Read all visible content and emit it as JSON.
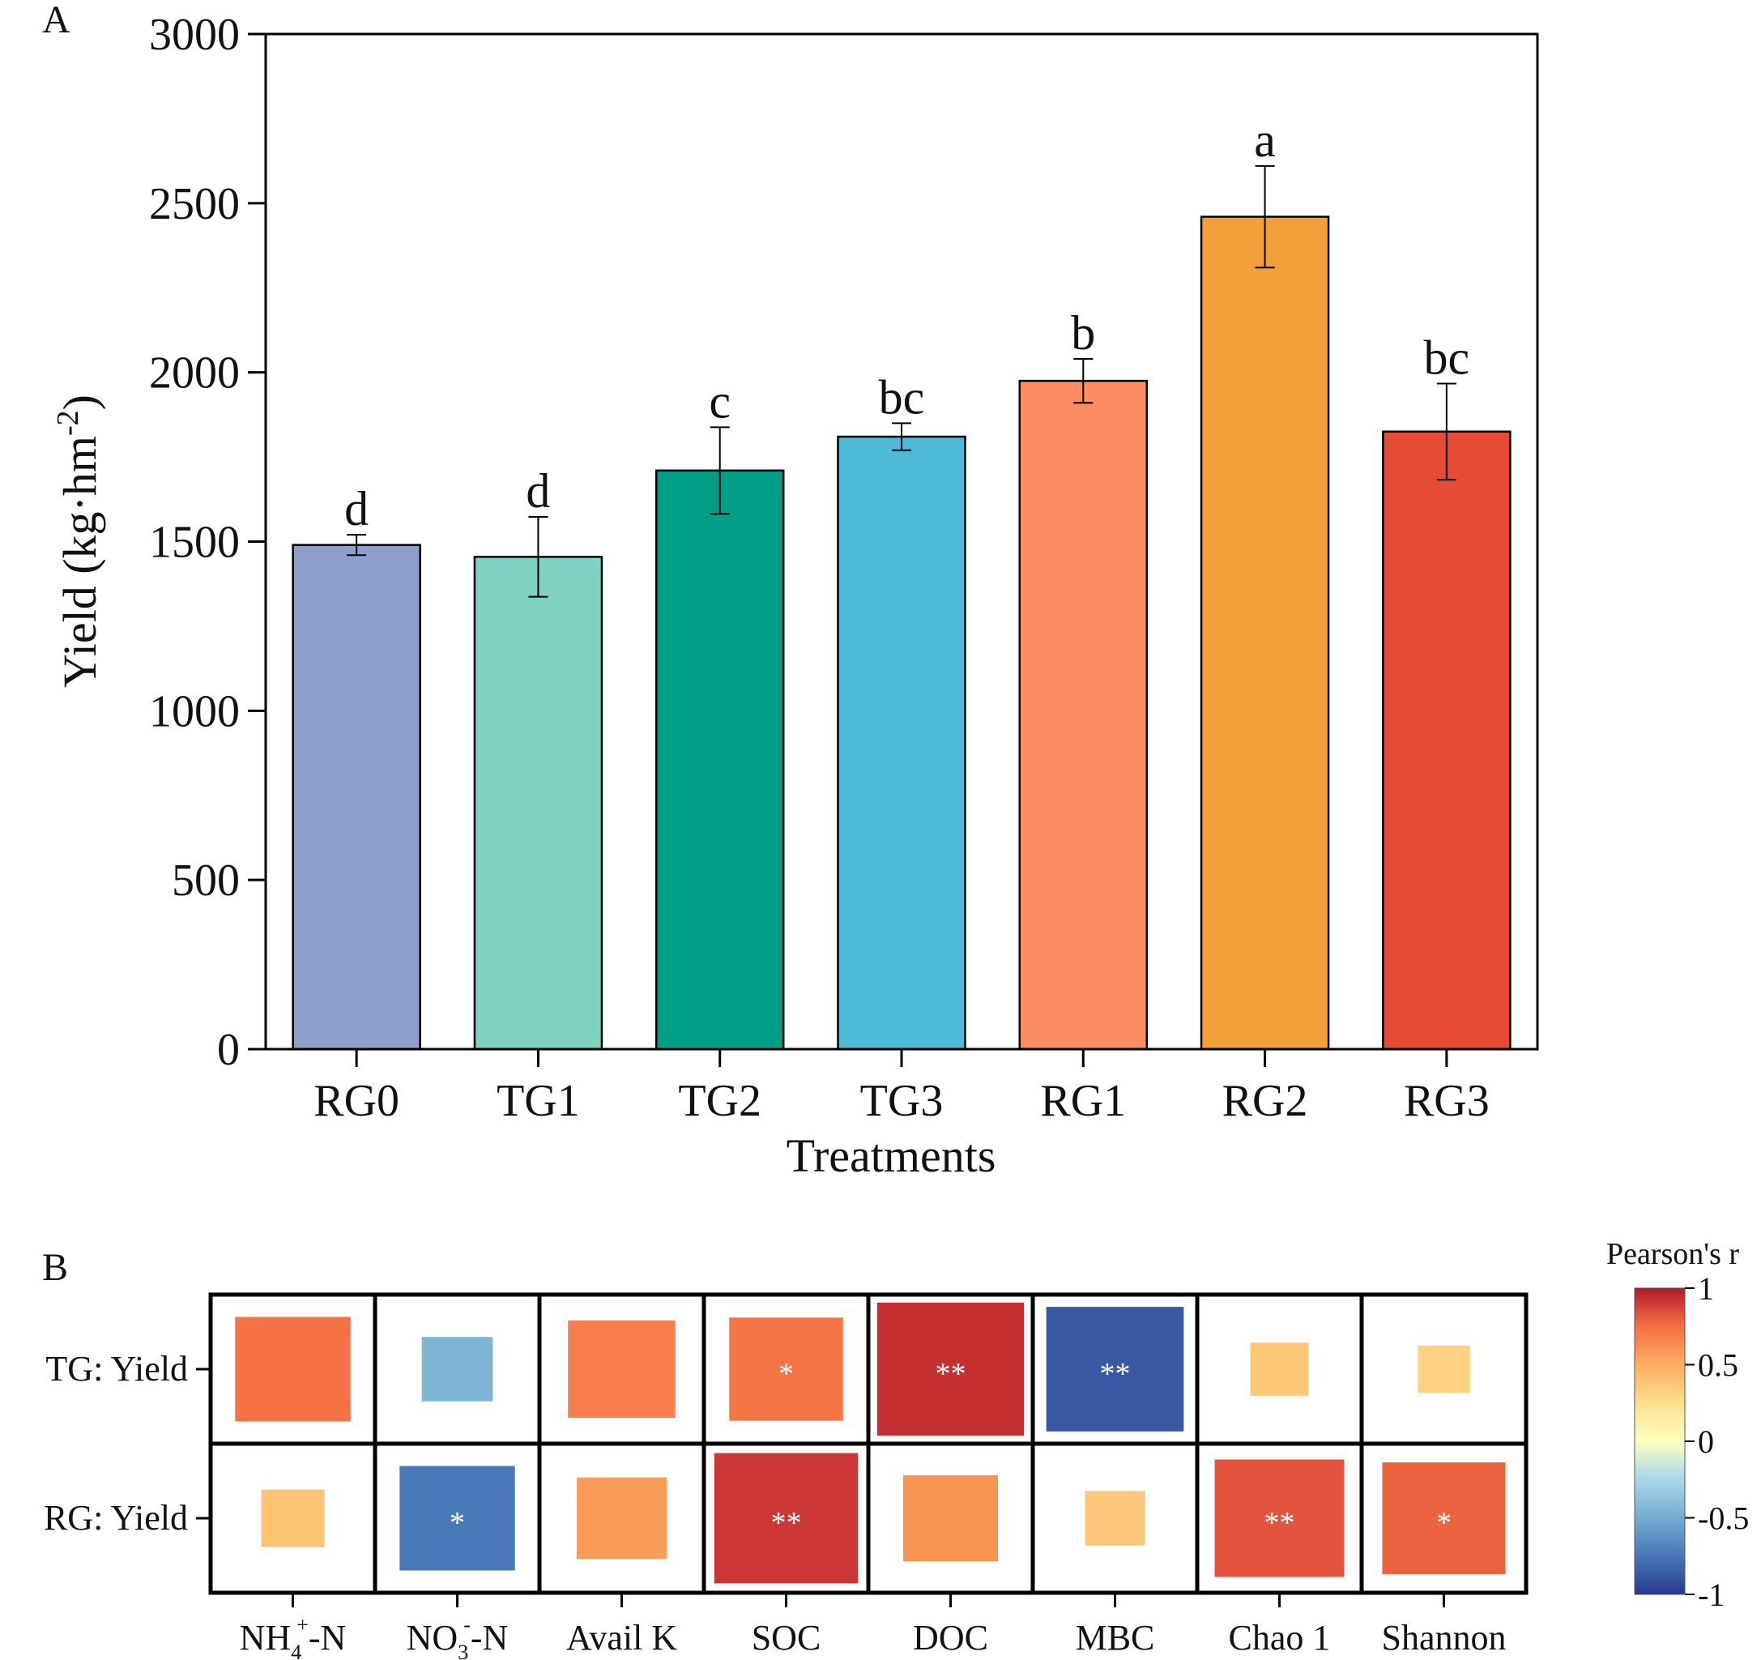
{
  "panel_a": {
    "label": "A",
    "chart_data": {
      "type": "bar",
      "xlabel": "Treatments",
      "ylabel": "Yield (kg·hm-2)",
      "ylabel_parts": {
        "main": "Yield (kg·hm",
        "sup": "-2",
        "close": ")"
      },
      "ylim": [
        0,
        3000
      ],
      "yticks": [
        0,
        500,
        1000,
        1500,
        2000,
        2500,
        3000
      ],
      "categories": [
        "RG0",
        "TG1",
        "TG2",
        "TG3",
        "RG1",
        "RG2",
        "RG3"
      ],
      "values": [
        1490,
        1455,
        1710,
        1810,
        1975,
        2460,
        1825
      ],
      "errors": [
        30,
        118,
        128,
        40,
        65,
        150,
        142
      ],
      "letters": [
        "d",
        "d",
        "c",
        "bc",
        "b",
        "a",
        "bc"
      ],
      "colors": [
        "#8DA0CB",
        "#7FD1C2",
        "#009E87",
        "#4DBBD5",
        "#FC8D62",
        "#F39F3A",
        "#E64B35"
      ]
    }
  },
  "panel_b": {
    "label": "B",
    "chart_data": {
      "type": "heatmap",
      "columns": [
        {
          "base": "NH",
          "sub": "4",
          "sup": "+",
          "tail": "-N"
        },
        {
          "base": "NO",
          "sub": "3",
          "sup": "-",
          "tail": "-N"
        },
        {
          "base": "Avail K"
        },
        {
          "base": "SOC"
        },
        {
          "base": "DOC"
        },
        {
          "base": "MBC"
        },
        {
          "base": "Chao 1"
        },
        {
          "base": "Shannon"
        }
      ],
      "rows": [
        {
          "label": "TG:  Yield",
          "r": [
            0.73,
            -0.45,
            0.68,
            0.72,
            0.93,
            -0.87,
            0.37,
            0.33
          ],
          "stars": [
            "",
            "",
            "",
            "*",
            "**",
            "**",
            "",
            ""
          ]
        },
        {
          "label": "RG:  Yield",
          "r": [
            0.4,
            -0.73,
            0.57,
            0.91,
            0.6,
            0.38,
            0.82,
            0.78
          ],
          "stars": [
            "",
            "*",
            "",
            "**",
            "",
            "",
            "**",
            "*"
          ]
        }
      ],
      "colorbar": {
        "title": "Pearson's r",
        "ticks": [
          "1",
          "0.5",
          "0",
          "-0.5",
          "-1"
        ]
      }
    }
  }
}
